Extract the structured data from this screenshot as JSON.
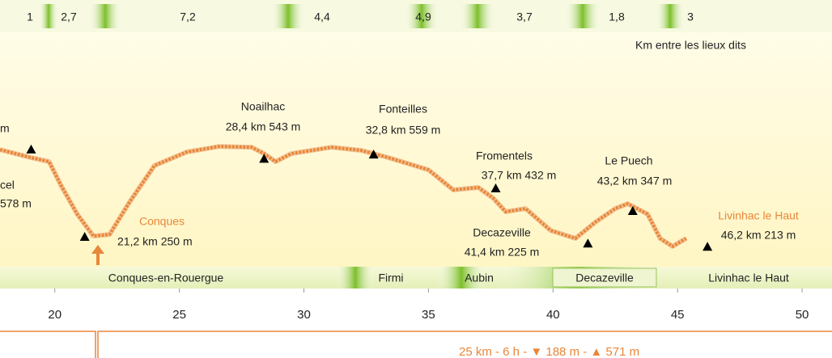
{
  "chart_data": {
    "type": "line",
    "x": [
      17.8,
      19.05,
      19.77,
      20.26,
      20.9,
      21.55,
      22.2,
      23.0,
      24.0,
      25.3,
      26.6,
      27.9,
      28.4,
      28.86,
      29.5,
      31.1,
      32.3,
      33.4,
      35.0,
      36.0,
      37.0,
      37.6,
      38.1,
      38.9,
      39.9,
      40.9,
      41.7,
      42.5,
      43.0,
      43.8,
      44.3,
      44.8,
      45.35
    ],
    "values": [
      577,
      547,
      532,
      441,
      335,
      253,
      259,
      380,
      517,
      568,
      589,
      586,
      562,
      532,
      562,
      586,
      574,
      547,
      501,
      426,
      435,
      395,
      344,
      356,
      274,
      244,
      305,
      356,
      374,
      335,
      244,
      214,
      244
    ],
    "color": "#e8873a",
    "xlim": [
      17.8,
      51.2
    ],
    "ylim": [
      138,
      926
    ],
    "xticks": [
      20,
      25,
      30,
      35,
      40,
      45,
      50
    ],
    "distance_segments": [
      "1",
      "2,7",
      "7,2",
      "4,4",
      "4,9",
      "3,7",
      "1,8",
      "3"
    ],
    "segments_caption": "Km entre les lieux dits",
    "left_fragment": "m",
    "waypoints": [
      {
        "name": "cel",
        "label": "578 m",
        "km": 19.05,
        "elevation": 578
      },
      {
        "name": "Conques",
        "label": "21,2 km  250 m",
        "km": 21.2,
        "elevation": 250,
        "color": "#e8873a"
      },
      {
        "name": "Noailhac",
        "label": "28,4 km  543 m",
        "km": 28.4,
        "elevation": 543
      },
      {
        "name": "Fonteilles",
        "label": "32,8 km  559 m",
        "km": 32.8,
        "elevation": 559
      },
      {
        "name": "Fromentels",
        "label": "37,7 km  432 m",
        "km": 37.7,
        "elevation": 432
      },
      {
        "name": "Decazeville",
        "label": "41,4 km 225 m",
        "km": 41.4,
        "elevation": 225
      },
      {
        "name": "Le Puech",
        "label": "43,2  km  347  m",
        "km": 43.2,
        "elevation": 347
      },
      {
        "name": "Livinhac le Haut",
        "label": "46,2 km  213 m",
        "km": 46.2,
        "elevation": 213,
        "color": "#e8873a"
      }
    ],
    "communes": [
      "Conques-en-Rouergue",
      "Firmi",
      "Aubin",
      "Decazeville",
      "Livinhac le Haut"
    ],
    "summary": "25 km  -  6 h  -  ▼  188 m  -  ▲ 571 m"
  }
}
